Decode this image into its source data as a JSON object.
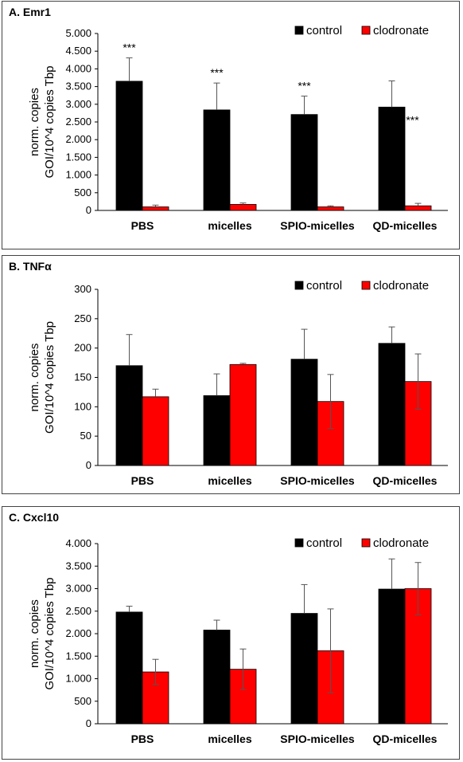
{
  "panels": [
    {
      "title": "A. Emr1"
    },
    {
      "title": "B. TNFα"
    },
    {
      "title": "C. Cxcl10"
    }
  ],
  "colors": {
    "control": "#000000",
    "clodronate": "#ff0000"
  },
  "chart_data": [
    {
      "type": "bar",
      "title": "A. Emr1",
      "ylabel": [
        "norm. copies",
        "GOI/10^4 copies Tbp"
      ],
      "xlabel": "",
      "categories": [
        "PBS",
        "micelles",
        "SPIO-micelles",
        "QD-micelles"
      ],
      "ylim": [
        0,
        5000
      ],
      "yticks": [
        0,
        500,
        1000,
        1500,
        2000,
        2500,
        3000,
        3500,
        4000,
        4500,
        5000
      ],
      "ytick_labels": [
        "0",
        "500",
        "1.000",
        "1.500",
        "2.000",
        "2.500",
        "3.000",
        "3.500",
        "4.000",
        "4.500",
        "5.000"
      ],
      "legend": "top-right",
      "series": [
        {
          "name": "control",
          "values": [
            3650,
            2840,
            2710,
            2920
          ],
          "errors": [
            660,
            760,
            520,
            740
          ]
        },
        {
          "name": "clodronate",
          "values": [
            100,
            170,
            100,
            130
          ],
          "errors": [
            50,
            40,
            30,
            70
          ]
        }
      ],
      "annotations": [
        "***",
        "***",
        "***",
        "***"
      ]
    },
    {
      "type": "bar",
      "title": "B. TNFα",
      "ylabel": [
        "norm. copies",
        "GOI/10^4 copies Tbp"
      ],
      "xlabel": "",
      "categories": [
        "PBS",
        "micelles",
        "SPIO-micelles",
        "QD-micelles"
      ],
      "ylim": [
        0,
        300
      ],
      "yticks": [
        0,
        50,
        100,
        150,
        200,
        250,
        300
      ],
      "ytick_labels": [
        "0",
        "50",
        "100",
        "150",
        "200",
        "250",
        "300"
      ],
      "legend": "top-right",
      "series": [
        {
          "name": "control",
          "values": [
            170,
            119,
            181,
            208
          ],
          "errors": [
            53,
            37,
            51,
            28
          ]
        },
        {
          "name": "clodronate",
          "values": [
            117,
            172,
            109,
            143
          ],
          "errors": [
            13,
            2,
            46,
            47
          ]
        }
      ]
    },
    {
      "type": "bar",
      "title": "C. Cxcl10",
      "ylabel": [
        "norm. copies",
        "GOI/10^4 copies Tbp"
      ],
      "xlabel": "",
      "categories": [
        "PBS",
        "micelles",
        "SPIO-micelles",
        "QD-micelles"
      ],
      "ylim": [
        0,
        4000
      ],
      "yticks": [
        0,
        500,
        1000,
        1500,
        2000,
        2500,
        3000,
        3500,
        4000
      ],
      "ytick_labels": [
        "0",
        "500",
        "1.000",
        "1.500",
        "2.000",
        "2.500",
        "3.000",
        "3.500",
        "4.000"
      ],
      "legend": "top-right",
      "series": [
        {
          "name": "control",
          "values": [
            2480,
            2080,
            2450,
            2990
          ],
          "errors": [
            130,
            220,
            640,
            670
          ]
        },
        {
          "name": "clodronate",
          "values": [
            1150,
            1210,
            1620,
            3000
          ],
          "errors": [
            280,
            450,
            930,
            580
          ]
        }
      ]
    }
  ]
}
